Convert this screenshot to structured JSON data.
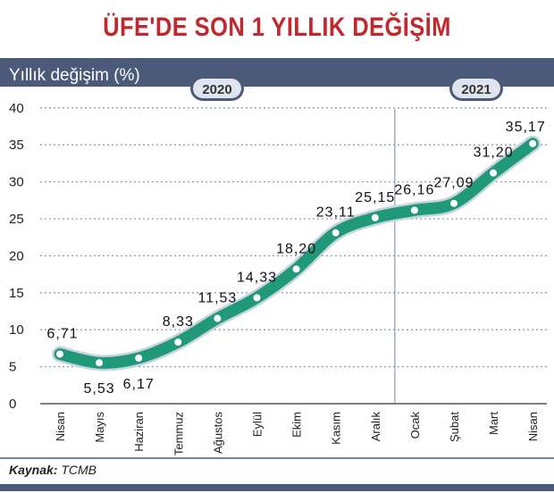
{
  "title": "ÜFE'DE SON 1 YILLIK DEĞİŞİM",
  "source_label": "Kaynak:",
  "source_value": "TCMB",
  "colors": {
    "title": "#c0282e",
    "header_bar": "#4a5a78",
    "line": "#1f9977",
    "marker": "#ffffff"
  },
  "chart_data": {
    "type": "line",
    "ylabel": "Yıllık değişim (%)",
    "year_labels": [
      "2020",
      "2021"
    ],
    "categories": [
      "Nisan",
      "Mayıs",
      "Haziran",
      "Temmuz",
      "Ağustos",
      "Eylül",
      "Ekim",
      "Kasım",
      "Aralık",
      "Ocak",
      "Şubat",
      "Mart",
      "Nisan"
    ],
    "values": [
      6.71,
      5.53,
      6.17,
      8.33,
      11.53,
      14.33,
      18.2,
      23.11,
      25.15,
      26.16,
      27.09,
      31.2,
      35.17
    ],
    "data_labels": [
      "6,71",
      "5,53",
      "6,17",
      "8,33",
      "11,53",
      "14,33",
      "18,20",
      "23,11",
      "25,15",
      "26,16",
      "27,09",
      "31,20",
      "35,17"
    ],
    "yticks": [
      0,
      5,
      10,
      15,
      20,
      25,
      30,
      35,
      40
    ],
    "ylim": [
      0,
      40
    ],
    "grid": true
  }
}
